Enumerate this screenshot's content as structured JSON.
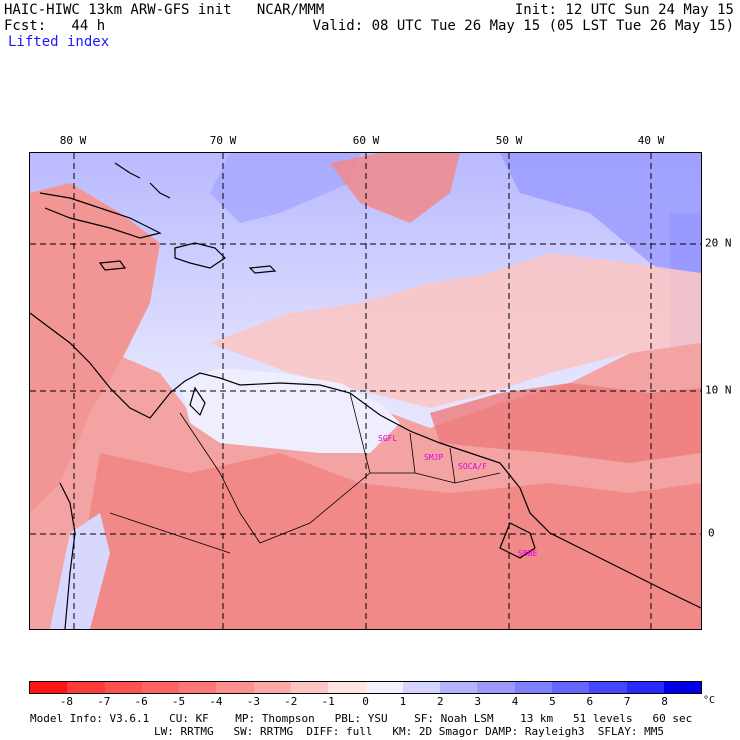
{
  "header": {
    "left_line1": "HAIC-HIWC 13km ARW-GFS init   NCAR/MMM",
    "left_line2": "Fcst:   44 h",
    "right_line1": "Init: 12 UTC Sun 24 May 15",
    "right_line2": "Valid: 08 UTC Tue 26 May 15 (05 LST Tue 26 May 15)",
    "field_name": "Lifted index"
  },
  "map": {
    "longitude_labels": [
      "80 W",
      "70 W",
      "60 W",
      "50 W",
      "40 W"
    ],
    "latitude_labels": [
      "20 N",
      "10 N",
      "0"
    ],
    "station_markers": [
      "SGFL",
      "SMJP",
      "SOCA/F",
      "SBBE"
    ],
    "gridline_style": "dashed",
    "colors": {
      "unstable": "#f08a8a",
      "stable": "#8c8cff",
      "neutral": "#f4f4ff",
      "coastline": "#000000",
      "station_label": "#e000e0"
    }
  },
  "colorbar": {
    "tick_labels": [
      "-8",
      "-7",
      "-6",
      "-5",
      "-4",
      "-3",
      "-2",
      "-1",
      "0",
      "1",
      "2",
      "3",
      "4",
      "5",
      "6",
      "7",
      "8"
    ],
    "unit": "°C",
    "colors": [
      "#ff1414",
      "#ff3c3c",
      "#ff5050",
      "#ff6464",
      "#ff7878",
      "#ff9090",
      "#ffa8a8",
      "#ffc4c4",
      "#ffe4e4",
      "#f2f2ff",
      "#d4d4ff",
      "#b4b4ff",
      "#9a9aff",
      "#8080ff",
      "#6666ff",
      "#4646ff",
      "#2828ff",
      "#0000e8"
    ]
  },
  "footer": {
    "line1": "Model Info: V3.6.1   CU: KF    MP: Thompson   PBL: YSU    SF: Noah LSM    13 km   51 levels   60 sec",
    "line2": "LW: RRTMG   SW: RRTMG  DIFF: full   KM: 2D Smagor DAMP: Rayleigh3  SFLAY: MM5"
  }
}
